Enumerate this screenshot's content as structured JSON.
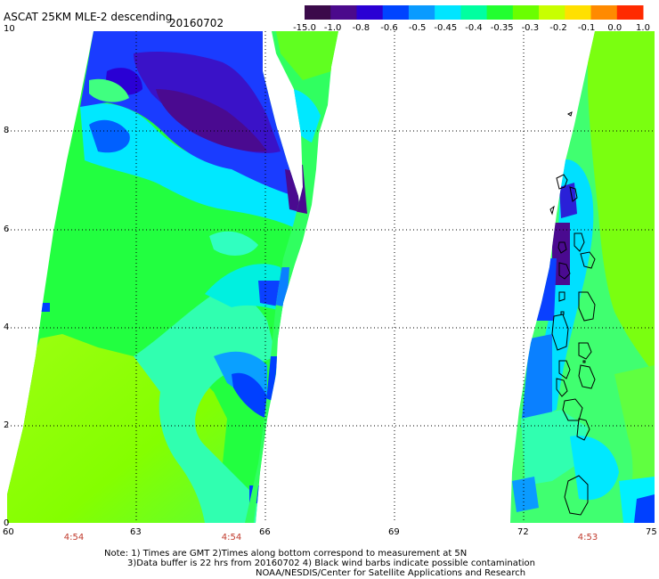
{
  "title": "ASCAT 25KM MLE-2 descending",
  "date": "20160702",
  "colorbar": {
    "labels": [
      "-15.0",
      "-1.0",
      "-0.8",
      "-0.6",
      "-0.5",
      "-0.45",
      "-0.4",
      "-0.35",
      "-0.3",
      "-0.2",
      "-0.1",
      "0.0",
      "1.0"
    ],
    "colors": [
      "#3b0a4a",
      "#4b0a8c",
      "#2a00d4",
      "#0044ff",
      "#0a9bff",
      "#00e5ff",
      "#00ffa0",
      "#22ff30",
      "#6aff00",
      "#c8ff00",
      "#ffe000",
      "#ff8a00",
      "#ff2a00"
    ]
  },
  "axes": {
    "x_ticks": [
      "60",
      "63",
      "66",
      "69",
      "72",
      "75"
    ],
    "y_ticks": [
      "0",
      "2",
      "4",
      "6",
      "8",
      "10"
    ],
    "x_range": [
      60,
      75
    ],
    "y_range": [
      0,
      10
    ],
    "grid": "dotted"
  },
  "times": [
    {
      "label": "4:54",
      "lon": 61.5
    },
    {
      "label": "4:54",
      "lon": 64.8
    },
    {
      "label": "4:53",
      "lon": 73.5
    }
  ],
  "notes": [
    "Note: 1) Times are GMT 2)Times along bottom correspond to measurement at 5N",
    "3)Data buffer is 22 hrs from 20160702 4) Black wind barbs indicate possible contamination",
    "NOAA/NESDIS/Center for Satellite Applications and Research"
  ]
}
